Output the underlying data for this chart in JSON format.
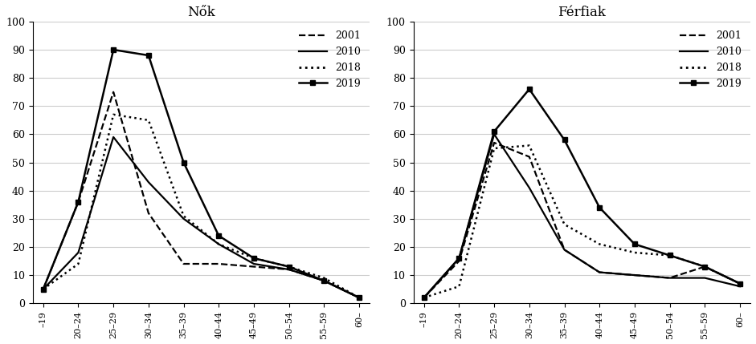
{
  "categories": [
    "–19",
    "20–24",
    "25–29",
    "30–34",
    "35–39",
    "40–44",
    "45–49",
    "50–54",
    "55–59",
    "60–"
  ],
  "women": {
    "2001": [
      5,
      36,
      75,
      32,
      14,
      14,
      13,
      12,
      8,
      2
    ],
    "2010": [
      5,
      18,
      59,
      43,
      30,
      21,
      14,
      12,
      8,
      2
    ],
    "2018": [
      5,
      14,
      67,
      65,
      31,
      21,
      16,
      13,
      9,
      2
    ],
    "2019": [
      5,
      36,
      90,
      88,
      50,
      24,
      16,
      13,
      8,
      2
    ]
  },
  "men": {
    "2001": [
      2,
      15,
      57,
      52,
      19,
      11,
      10,
      9,
      13,
      7
    ],
    "2010": [
      2,
      16,
      60,
      41,
      19,
      11,
      10,
      9,
      9,
      6
    ],
    "2018": [
      2,
      6,
      55,
      56,
      28,
      21,
      18,
      17,
      13,
      7
    ],
    "2019": [
      2,
      16,
      61,
      76,
      58,
      34,
      21,
      17,
      13,
      7
    ]
  },
  "title_women": "Nők",
  "title_men": "Férfiak",
  "years": [
    "2001",
    "2010",
    "2018",
    "2019"
  ],
  "linestyles": [
    "--",
    "-",
    ":",
    "-"
  ],
  "markers": [
    null,
    null,
    null,
    "s"
  ],
  "colors": [
    "#000000",
    "#000000",
    "#000000",
    "#000000"
  ],
  "ylim": [
    0,
    100
  ],
  "yticks": [
    0,
    10,
    20,
    30,
    40,
    50,
    60,
    70,
    80,
    90,
    100
  ],
  "linewidths": [
    1.6,
    1.6,
    1.8,
    1.8
  ],
  "background_color": "#ffffff",
  "grid_color": "#cccccc"
}
